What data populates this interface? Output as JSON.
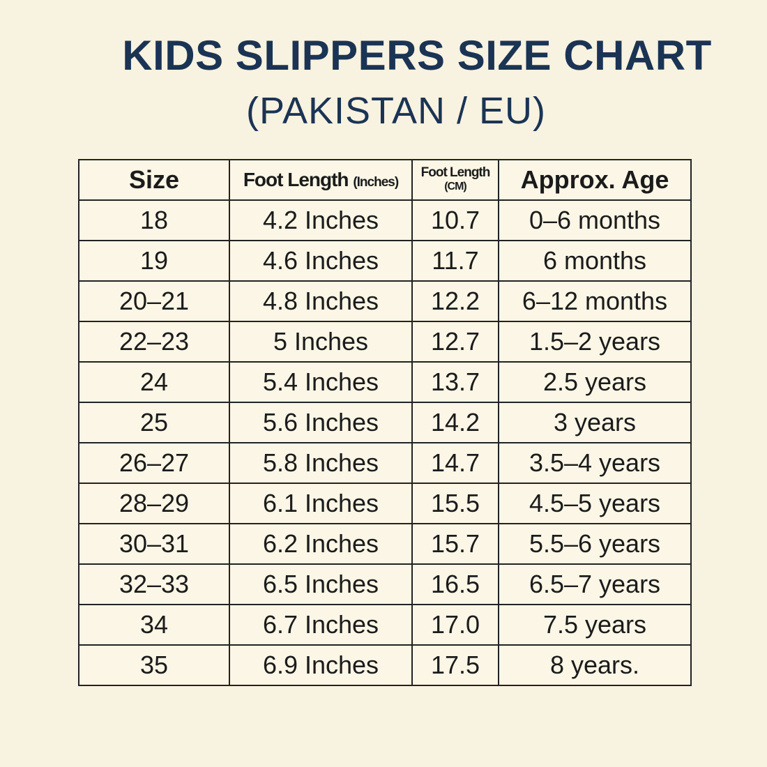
{
  "header": {
    "title": "KIDS SLIPPERS SIZE CHART",
    "subtitle": "(PAKISTAN / EU)"
  },
  "table": {
    "columns": [
      {
        "label": "Size"
      },
      {
        "label": "Foot Length",
        "unit": "(Inches)"
      },
      {
        "label": "Foot Length",
        "unit": "(CM)"
      },
      {
        "label": "Approx. Age"
      }
    ],
    "rows": [
      [
        "18",
        "4.2 Inches",
        "10.7",
        "0–6 months"
      ],
      [
        "19",
        "4.6 Inches",
        "11.7",
        "6 months"
      ],
      [
        "20–21",
        "4.8 Inches",
        "12.2",
        "6–12 months"
      ],
      [
        "22–23",
        "5 Inches",
        "12.7",
        "1.5–2 years"
      ],
      [
        "24",
        "5.4 Inches",
        "13.7",
        "2.5 years"
      ],
      [
        "25",
        "5.6 Inches",
        "14.2",
        "3 years"
      ],
      [
        "26–27",
        "5.8 Inches",
        "14.7",
        "3.5–4 years"
      ],
      [
        "28–29",
        "6.1 Inches",
        "15.5",
        "4.5–5 years"
      ],
      [
        "30–31",
        "6.2 Inches",
        "15.7",
        "5.5–6 years"
      ],
      [
        "32–33",
        "6.5 Inches",
        "16.5",
        "6.5–7 years"
      ],
      [
        "34",
        "6.7 Inches",
        "17.0",
        "7.5 years"
      ],
      [
        "35",
        "6.9 Inches",
        "17.5",
        "8 years."
      ]
    ]
  }
}
